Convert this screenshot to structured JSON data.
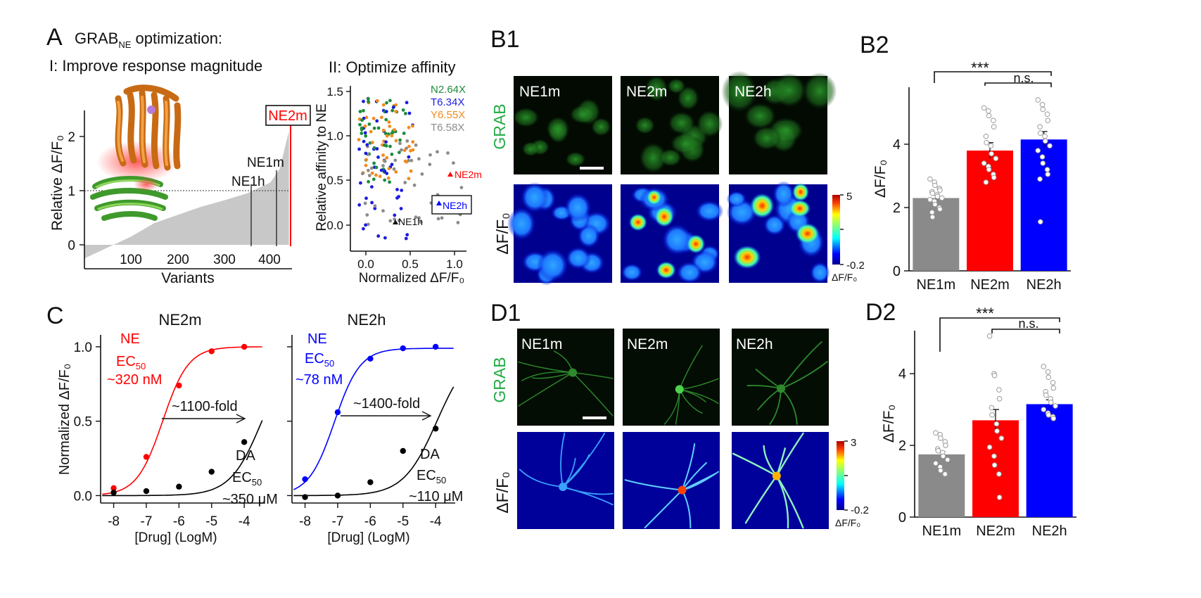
{
  "panel_A": {
    "letter": "A",
    "title_main": "GRAB",
    "title_sub": "NE",
    "title_rest": " optimization:",
    "step1": "I: Improve response magnitude",
    "step2": "II: Optimize affinity",
    "ylabel": "Relative ΔF/F₀",
    "xlabel": "Variants",
    "ne2m_box": "NE2m",
    "ne1m_label": "NE1m",
    "ne1h_label": "NE1h",
    "xticks": [
      "100",
      "200",
      "300",
      "400"
    ],
    "yticks": [
      "0",
      "1",
      "2"
    ],
    "scatter_ylabel": "Relative affinity to NE",
    "scatter_xlabel": "Normalized ΔF/F₀",
    "scatter_xticks": [
      "0.0",
      "0.5",
      "1.0"
    ],
    "scatter_yticks": [
      "0.0",
      "0.5",
      "1.0",
      "1.5"
    ],
    "legend": [
      {
        "label": "N2.64X",
        "color": "#1e8c3c"
      },
      {
        "label": "T6.34X",
        "color": "#1c1ce0"
      },
      {
        "label": "Y6.55X",
        "color": "#f08c1e"
      },
      {
        "label": "T6.58X",
        "color": "#8c8c8c"
      }
    ],
    "scatter_ne2m": "NE2m",
    "scatter_ne2h": "NE2h",
    "scatter_ne1h": "NE1h"
  },
  "panel_B1": {
    "letter": "B1",
    "row1": "GRAB",
    "row2": "ΔF/F₀",
    "cols": [
      "NE1m",
      "NE2m",
      "NE2h"
    ],
    "cbar_max": "5",
    "cbar_min": "-0.2",
    "cbar_label": "ΔF/F₀"
  },
  "panel_B2": {
    "letter": "B2",
    "ylabel": "ΔF/F₀",
    "yticks": [
      "0",
      "2",
      "4"
    ],
    "sig1": "***",
    "sig2": "n.s."
  },
  "panel_C": {
    "letter": "C",
    "ylabel": "Normalized ΔF/F₀",
    "xlabel": "[Drug] (LogM)",
    "xticks": [
      "-8",
      "-7",
      "-6",
      "-5",
      "-4"
    ],
    "yticks": [
      "0.0",
      "0.5",
      "1.0"
    ],
    "left": {
      "title": "NE2m",
      "ne_label": "NE",
      "ec_text": "EC",
      "ec_sub": "50",
      "ne_ec": "~320 nM",
      "fold": "~1100-fold",
      "da_label": "DA",
      "da_ec": "~350 μM"
    },
    "right": {
      "title": "NE2h",
      "ne_label": "NE",
      "ec_text": "EC",
      "ec_sub": "50",
      "ne_ec": "~78 nM",
      "fold": "~1400-fold",
      "da_label": "DA",
      "da_ec": "~110 μM"
    }
  },
  "panel_D1": {
    "letter": "D1",
    "row1": "GRAB",
    "row2": "ΔF/F₀",
    "cols": [
      "NE1m",
      "NE2m",
      "NE2h"
    ],
    "cbar_max": "3",
    "cbar_min": "-0.2",
    "cbar_label": "ΔF/F₀"
  },
  "panel_D2": {
    "letter": "D2",
    "ylabel": "ΔF/F₀",
    "yticks": [
      "0",
      "2",
      "4"
    ],
    "sig1": "***",
    "sig2": "n.s."
  },
  "chart_data": [
    {
      "type": "bar",
      "panel": "B2",
      "categories": [
        "NE1m",
        "NE2m",
        "NE2h"
      ],
      "values": [
        2.3,
        3.8,
        4.15
      ],
      "errors": [
        0.12,
        0.25,
        0.25
      ],
      "colors": [
        "#8a8a8a",
        "#ff0000",
        "#0000ff"
      ],
      "ylim": [
        0,
        5.8
      ],
      "points": [
        [
          2.9,
          2.8,
          2.7,
          2.6,
          2.55,
          2.5,
          2.45,
          2.4,
          2.35,
          2.3,
          2.25,
          2.2,
          2.1,
          2.0,
          1.95,
          1.85,
          1.7
        ],
        [
          5.15,
          5.05,
          4.9,
          4.75,
          4.55,
          4.25,
          4.05,
          3.95,
          3.7,
          3.55,
          3.4,
          3.3,
          3.2,
          3.05,
          2.95,
          2.8
        ],
        [
          5.4,
          5.25,
          5.1,
          4.95,
          4.75,
          4.55,
          4.35,
          4.25,
          4.1,
          3.95,
          3.8,
          3.6,
          3.4,
          3.2,
          3.05,
          2.9,
          1.55
        ]
      ]
    },
    {
      "type": "bar",
      "panel": "D2",
      "categories": [
        "NE1m",
        "NE2m",
        "NE2h"
      ],
      "values": [
        1.75,
        2.7,
        3.15
      ],
      "errors": [
        0.08,
        0.3,
        0.12
      ],
      "colors": [
        "#8a8a8a",
        "#ff0000",
        "#0000ff"
      ],
      "ylim": [
        0,
        5.2
      ],
      "points": [
        [
          2.35,
          2.3,
          2.2,
          2.1,
          2.0,
          1.9,
          1.85,
          1.8,
          1.7,
          1.6,
          1.5,
          1.4,
          1.3,
          1.2
        ],
        [
          5.05,
          4.0,
          3.95,
          3.55,
          3.3,
          3.05,
          2.85,
          2.6,
          2.4,
          2.2,
          1.95,
          1.7,
          1.45,
          1.2,
          0.55
        ],
        [
          4.2,
          4.05,
          3.9,
          3.75,
          3.6,
          3.5,
          3.4,
          3.3,
          3.2,
          3.1,
          3.0,
          2.9,
          2.85,
          2.8,
          2.75
        ]
      ]
    },
    {
      "type": "line",
      "panel": "C-left",
      "title": "NE2m",
      "xlabel": "[Drug] (LogM)",
      "ylabel": "Normalized ΔF/F₀",
      "xlim": [
        -8.4,
        -3.4
      ],
      "ylim": [
        -0.05,
        1.08
      ],
      "series": [
        {
          "name": "NE",
          "color": "#ff0000",
          "x": [
            -8,
            -7,
            -6,
            -5,
            -4
          ],
          "y": [
            0.05,
            0.26,
            0.74,
            0.97,
            1.0
          ],
          "logEC50": -6.5,
          "max": 1.0,
          "hill": 1.1
        },
        {
          "name": "DA",
          "color": "#000000",
          "x": [
            -8,
            -7,
            -6,
            -5,
            -4
          ],
          "y": [
            0.02,
            0.03,
            0.06,
            0.16,
            0.36
          ],
          "logEC50": -3.46,
          "max": 1.0,
          "hill": 0.9
        }
      ]
    },
    {
      "type": "line",
      "panel": "C-right",
      "title": "NE2h",
      "xlabel": "[Drug] (LogM)",
      "ylabel": "Normalized ΔF/F₀",
      "xlim": [
        -8.4,
        -3.4
      ],
      "ylim": [
        -0.05,
        1.08
      ],
      "series": [
        {
          "name": "NE",
          "color": "#0000ff",
          "x": [
            -8,
            -7,
            -6,
            -5,
            -4
          ],
          "y": [
            0.11,
            0.56,
            0.92,
            0.99,
            1.0
          ],
          "logEC50": -7.1,
          "max": 0.99,
          "hill": 1.1
        },
        {
          "name": "DA",
          "color": "#000000",
          "x": [
            -8,
            -7,
            -6,
            -5,
            -4
          ],
          "y": [
            -0.01,
            0.0,
            0.09,
            0.3,
            0.45
          ],
          "logEC50": -3.96,
          "max": 1.0,
          "hill": 0.85
        }
      ]
    },
    {
      "type": "area",
      "panel": "A-I",
      "xlabel": "Variants",
      "ylabel": "Relative ΔF/F₀",
      "xlim": [
        0,
        445
      ],
      "ylim": [
        -0.4,
        2.4
      ],
      "x": [
        0,
        50,
        100,
        150,
        200,
        250,
        300,
        350,
        400,
        420,
        440
      ],
      "y": [
        -0.25,
        -0.05,
        0.15,
        0.4,
        0.55,
        0.7,
        0.82,
        0.95,
        1.15,
        1.4,
        2.1
      ]
    }
  ]
}
